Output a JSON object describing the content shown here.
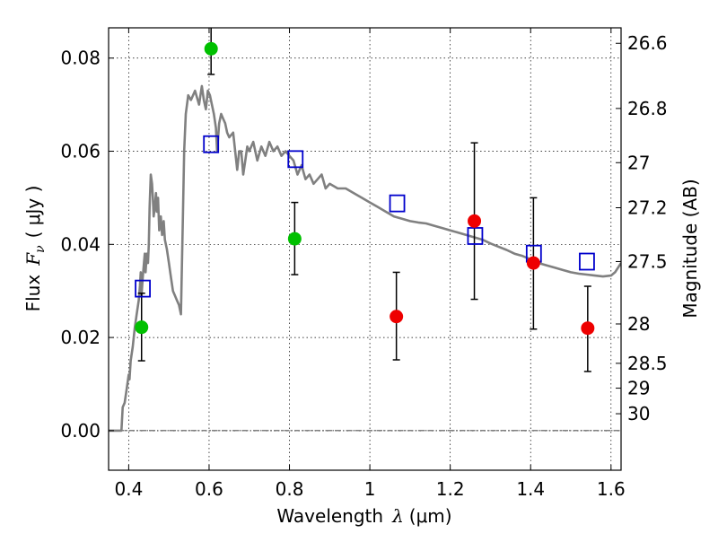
{
  "chart_data": {
    "type": "scatter",
    "xlabel_prefix": "Wavelength",
    "xlabel_var": "λ",
    "xlabel_unit": "(μm)",
    "ylabel_prefix": "Flux",
    "ylabel_var": "F",
    "ylabel_sub": "ν",
    "ylabel_unit": "( μJy )",
    "y2label": "Magnitude (AB)",
    "xlim": [
      0.35,
      1.625
    ],
    "ylim": [
      -0.0085,
      0.0865
    ],
    "grid": true,
    "x_ticks": [
      {
        "value": 0.4,
        "label": "0.4"
      },
      {
        "value": 0.6,
        "label": "0.6"
      },
      {
        "value": 0.8,
        "label": "0.8"
      },
      {
        "value": 1.0,
        "label": "1"
      },
      {
        "value": 1.2,
        "label": "1.2"
      },
      {
        "value": 1.4,
        "label": "1.4"
      },
      {
        "value": 1.6,
        "label": "1.6"
      }
    ],
    "y_ticks": [
      {
        "value": 0.0,
        "label": "0.00"
      },
      {
        "value": 0.02,
        "label": "0.02"
      },
      {
        "value": 0.04,
        "label": "0.04"
      },
      {
        "value": 0.06,
        "label": "0.06"
      },
      {
        "value": 0.08,
        "label": "0.08"
      }
    ],
    "y2_ticks": [
      {
        "value": 26.6,
        "label": "26.6"
      },
      {
        "value": 26.8,
        "label": "26.8"
      },
      {
        "value": 27.0,
        "label": "27"
      },
      {
        "value": 27.2,
        "label": "27.2"
      },
      {
        "value": 27.5,
        "label": "27.5"
      },
      {
        "value": 28.0,
        "label": "28"
      },
      {
        "value": 28.5,
        "label": "28.5"
      },
      {
        "value": 29.0,
        "label": "29"
      },
      {
        "value": 30.0,
        "label": "30"
      }
    ],
    "magnitude_zeropoint": 23.9,
    "model_spectrum": {
      "color": "#808080",
      "x": [
        0.35,
        0.382,
        0.385,
        0.39,
        0.395,
        0.4,
        0.402,
        0.405,
        0.41,
        0.415,
        0.42,
        0.425,
        0.428,
        0.43,
        0.432,
        0.435,
        0.438,
        0.44,
        0.442,
        0.445,
        0.448,
        0.45,
        0.452,
        0.455,
        0.458,
        0.46,
        0.462,
        0.465,
        0.468,
        0.47,
        0.473,
        0.476,
        0.48,
        0.483,
        0.487,
        0.49,
        0.495,
        0.5,
        0.505,
        0.51,
        0.515,
        0.52,
        0.525,
        0.53,
        0.535,
        0.538,
        0.542,
        0.548,
        0.555,
        0.565,
        0.575,
        0.582,
        0.587,
        0.592,
        0.597,
        0.602,
        0.607,
        0.612,
        0.617,
        0.62,
        0.625,
        0.63,
        0.635,
        0.64,
        0.645,
        0.65,
        0.66,
        0.67,
        0.675,
        0.68,
        0.685,
        0.69,
        0.695,
        0.7,
        0.71,
        0.72,
        0.73,
        0.74,
        0.75,
        0.76,
        0.77,
        0.78,
        0.79,
        0.8,
        0.81,
        0.82,
        0.83,
        0.84,
        0.85,
        0.86,
        0.87,
        0.88,
        0.89,
        0.9,
        0.92,
        0.94,
        0.96,
        0.98,
        1.0,
        1.02,
        1.04,
        1.06,
        1.08,
        1.1,
        1.12,
        1.14,
        1.16,
        1.18,
        1.2,
        1.22,
        1.24,
        1.26,
        1.28,
        1.3,
        1.32,
        1.34,
        1.36,
        1.38,
        1.4,
        1.42,
        1.44,
        1.46,
        1.48,
        1.5,
        1.52,
        1.54,
        1.56,
        1.58,
        1.6,
        1.61,
        1.625
      ],
      "y": [
        0.0,
        0.0,
        0.005,
        0.006,
        0.009,
        0.012,
        0.011,
        0.015,
        0.018,
        0.022,
        0.025,
        0.028,
        0.031,
        0.034,
        0.029,
        0.033,
        0.036,
        0.038,
        0.034,
        0.038,
        0.036,
        0.04,
        0.048,
        0.055,
        0.053,
        0.05,
        0.046,
        0.048,
        0.051,
        0.047,
        0.05,
        0.043,
        0.046,
        0.042,
        0.045,
        0.041,
        0.039,
        0.036,
        0.033,
        0.03,
        0.029,
        0.028,
        0.027,
        0.025,
        0.047,
        0.06,
        0.068,
        0.072,
        0.071,
        0.073,
        0.07,
        0.074,
        0.071,
        0.069,
        0.073,
        0.072,
        0.07,
        0.068,
        0.065,
        0.06,
        0.066,
        0.068,
        0.067,
        0.066,
        0.064,
        0.063,
        0.064,
        0.056,
        0.06,
        0.06,
        0.055,
        0.058,
        0.061,
        0.06,
        0.062,
        0.058,
        0.061,
        0.059,
        0.062,
        0.06,
        0.061,
        0.059,
        0.06,
        0.059,
        0.058,
        0.055,
        0.057,
        0.054,
        0.055,
        0.053,
        0.054,
        0.055,
        0.052,
        0.053,
        0.052,
        0.052,
        0.051,
        0.05,
        0.049,
        0.048,
        0.047,
        0.046,
        0.0455,
        0.045,
        0.0447,
        0.0445,
        0.044,
        0.0435,
        0.043,
        0.0425,
        0.042,
        0.0415,
        0.041,
        0.0402,
        0.0395,
        0.0388,
        0.038,
        0.0375,
        0.0368,
        0.036,
        0.0355,
        0.035,
        0.0345,
        0.034,
        0.0337,
        0.0335,
        0.0333,
        0.0331,
        0.0333,
        0.034,
        0.036
      ]
    },
    "series": [
      {
        "marker": "square",
        "color": "#0000cc",
        "points": [
          {
            "x": 0.435,
            "y": 0.0305
          },
          {
            "x": 0.605,
            "y": 0.0615
          },
          {
            "x": 0.815,
            "y": 0.0583
          },
          {
            "x": 1.068,
            "y": 0.0488
          },
          {
            "x": 1.262,
            "y": 0.0418
          },
          {
            "x": 1.408,
            "y": 0.038
          },
          {
            "x": 1.54,
            "y": 0.0363
          }
        ]
      },
      {
        "marker": "circle",
        "color": "#00c000",
        "points": [
          {
            "x": 0.432,
            "y": 0.0222,
            "yerr_low": 0.015,
            "yerr_high": 0.0295
          },
          {
            "x": 0.605,
            "y": 0.082,
            "yerr_low": 0.0765,
            "yerr_high": 0.087
          },
          {
            "x": 0.813,
            "y": 0.0412,
            "yerr_low": 0.0335,
            "yerr_high": 0.049
          }
        ]
      },
      {
        "marker": "circle",
        "color": "#ee0000",
        "points": [
          {
            "x": 1.066,
            "y": 0.0245,
            "yerr_low": 0.0152,
            "yerr_high": 0.034
          },
          {
            "x": 1.26,
            "y": 0.045,
            "yerr_low": 0.0282,
            "yerr_high": 0.0618
          },
          {
            "x": 1.407,
            "y": 0.036,
            "yerr_low": 0.0218,
            "yerr_high": 0.05
          },
          {
            "x": 1.542,
            "y": 0.022,
            "yerr_low": 0.0127,
            "yerr_high": 0.031
          }
        ]
      }
    ],
    "zero_line": 0.0
  }
}
